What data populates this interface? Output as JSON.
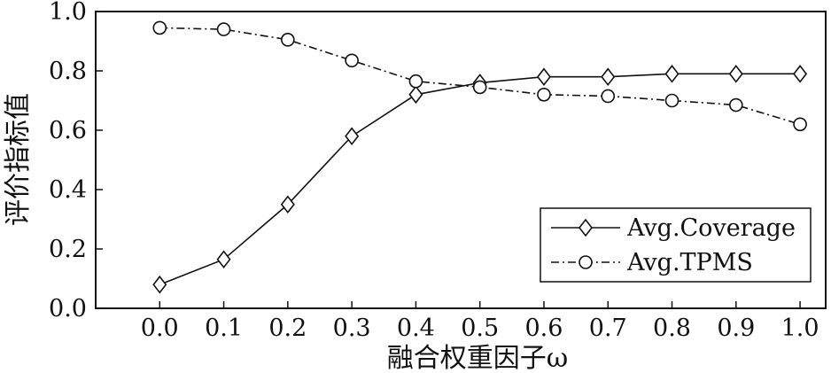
{
  "chart_data": {
    "type": "line",
    "title": "",
    "xlabel": "融合权重因子ω",
    "ylabel": "评价指标值",
    "x": [
      0.0,
      0.1,
      0.2,
      0.3,
      0.4,
      0.5,
      0.6,
      0.7,
      0.8,
      0.9,
      1.0
    ],
    "x_ticks": [
      "0.0",
      "0.1",
      "0.2",
      "0.3",
      "0.4",
      "0.5",
      "0.6",
      "0.7",
      "0.8",
      "0.9",
      "1.0"
    ],
    "y_ticks": [
      "0.0",
      "0.2",
      "0.4",
      "0.6",
      "0.8",
      "1.0"
    ],
    "xlim": [
      -0.1,
      1.04
    ],
    "ylim": [
      0.0,
      1.0
    ],
    "grid": false,
    "legend_position": "lower-right",
    "series": [
      {
        "name": "Avg.Coverage",
        "marker": "diamond",
        "line_style": "solid",
        "color": "#111111",
        "values": [
          0.08,
          0.165,
          0.35,
          0.58,
          0.72,
          0.76,
          0.78,
          0.78,
          0.79,
          0.79,
          0.79
        ]
      },
      {
        "name": "Avg.TPMS",
        "marker": "circle",
        "line_style": "dash-dot",
        "color": "#111111",
        "values": [
          0.945,
          0.94,
          0.905,
          0.835,
          0.765,
          0.745,
          0.72,
          0.715,
          0.7,
          0.685,
          0.62
        ]
      }
    ]
  }
}
